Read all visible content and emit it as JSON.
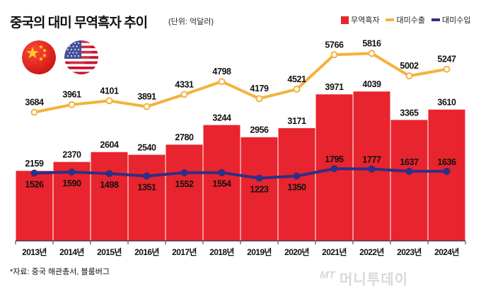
{
  "header": {
    "title": "중국의 대미 무역흑자 추이",
    "unit": "(단위: 억달러)"
  },
  "legend": {
    "items": [
      {
        "label": "무역흑자",
        "color": "#e8242e",
        "kind": "box"
      },
      {
        "label": "대미수출",
        "color": "#f4b23c",
        "kind": "line"
      },
      {
        "label": "대미수입",
        "color": "#2e2f86",
        "kind": "line"
      }
    ]
  },
  "source": "*자료: 중국 해관총서, 블룸버그",
  "watermark": {
    "logo": "MT",
    "text": "머니투데이"
  },
  "flags": [
    "china-flag",
    "usa-flag"
  ],
  "chart_data": {
    "type": "bar",
    "categories": [
      "2013년",
      "2014년",
      "2015년",
      "2016년",
      "2017년",
      "2018년",
      "2019년",
      "2020년",
      "2021년",
      "2022년",
      "2023년",
      "2024년"
    ],
    "series": [
      {
        "name": "무역흑자",
        "type": "bar",
        "color": "#e8242e",
        "values": [
          2159,
          2370,
          2604,
          2540,
          2780,
          3244,
          2956,
          3171,
          3971,
          4039,
          3365,
          3610
        ]
      },
      {
        "name": "대미수출",
        "type": "line",
        "color": "#f4b23c",
        "values": [
          3684,
          3961,
          4101,
          3891,
          4331,
          4798,
          4179,
          4521,
          5766,
          5816,
          5002,
          5247
        ]
      },
      {
        "name": "대미수입",
        "type": "line",
        "color": "#2e2f86",
        "values": [
          1526,
          1590,
          1498,
          1351,
          1552,
          1554,
          1223,
          1350,
          1795,
          1777,
          1637,
          1636
        ]
      }
    ],
    "title": "중국의 대미 무역흑자 추이",
    "unit": "(단위: 억달러)",
    "grid": false,
    "legend_position": "top-right"
  }
}
